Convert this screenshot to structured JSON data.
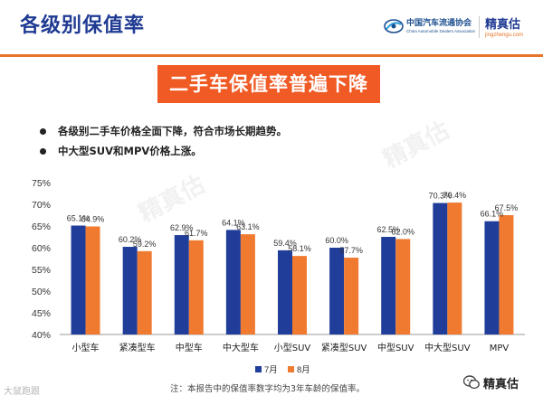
{
  "header": {
    "title": "各级别保值率",
    "logo_org_cn": "中国汽车流通协会",
    "logo_org_en": "China Automobile Dealers Association",
    "logo_brand": "精真估",
    "logo_brand_site": "jingzhengu.com"
  },
  "banner": {
    "title": "二手车保值率普遍下降"
  },
  "bullets": [
    "各级别二手车价格全面下降，符合市场长期趋势。",
    "中大型SUV和MPV价格上涨。"
  ],
  "colors": {
    "jul": "#1f3d99",
    "aug": "#f07a30",
    "banner": "#f05a24",
    "title": "#1f3a93",
    "rule": "#e8742a"
  },
  "chart_data": {
    "type": "bar",
    "categories": [
      "小型车",
      "紧凑型车",
      "中型车",
      "中大型车",
      "小型SUV",
      "紧凑型SUV",
      "中型SUV",
      "中大型SUV",
      "MPV"
    ],
    "series": [
      {
        "name": "7月",
        "values": [
          65.1,
          60.2,
          62.9,
          64.1,
          59.4,
          60.0,
          62.5,
          70.3,
          66.1
        ],
        "labels": [
          "65.1%",
          "60.2%",
          "62.9%",
          "64.1%",
          "59.4%",
          "60.0%",
          "62.5%",
          "70.3%",
          "66.1%"
        ]
      },
      {
        "name": "8月",
        "values": [
          64.9,
          59.2,
          61.7,
          63.1,
          58.1,
          57.7,
          62.0,
          70.4,
          67.5
        ],
        "labels": [
          "64.9%",
          "59.2%",
          "61.7%",
          "63.1%",
          "58.1%",
          "57.7%",
          "62.0%",
          "70.4%",
          "67.5%"
        ]
      }
    ],
    "yticks": [
      "40%",
      "45%",
      "50%",
      "55%",
      "60%",
      "65%",
      "70%",
      "75%"
    ],
    "ylim": [
      40,
      75
    ],
    "grid": false,
    "legend": "bottom-center"
  },
  "footer": {
    "note": "注：本报告中的保值率数字均为3年车龄的保值率。",
    "watermark_left": "大鼠跑跟",
    "watermark_right": "精真估"
  },
  "watermark_stamp": "精真估"
}
